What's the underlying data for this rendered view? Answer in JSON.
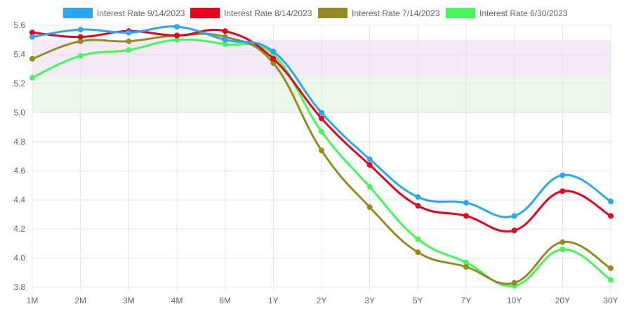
{
  "chart_data": {
    "type": "line",
    "categories": [
      "1M",
      "2M",
      "3M",
      "4M",
      "6M",
      "1Y",
      "2Y",
      "3Y",
      "5Y",
      "7Y",
      "10Y",
      "20Y",
      "30Y"
    ],
    "ylim": [
      3.8,
      5.6
    ],
    "yticks": [
      "5.6",
      "5.4",
      "5.2",
      "5.0",
      "4.8",
      "4.6",
      "4.4",
      "4.2",
      "4.0",
      "3.8"
    ],
    "grid": true,
    "legend_position": "top",
    "bands": [
      {
        "from": 5.25,
        "to": 5.5,
        "color": "#f3eaf5"
      },
      {
        "from": 5.0,
        "to": 5.25,
        "color": "#ecf8ea"
      }
    ],
    "series": [
      {
        "name": "Interest Rate 9/14/2023",
        "color": "#2aa6f5",
        "values": [
          5.52,
          5.57,
          5.55,
          5.59,
          5.5,
          5.42,
          5.0,
          4.68,
          4.42,
          4.38,
          4.29,
          4.57,
          4.39
        ]
      },
      {
        "name": "Interest Rate 8/14/2023",
        "color": "#e8001c",
        "values": [
          5.55,
          5.52,
          5.56,
          5.53,
          5.56,
          5.37,
          4.96,
          4.64,
          4.36,
          4.29,
          4.19,
          4.46,
          4.29
        ]
      },
      {
        "name": "Interest Rate 7/14/2023",
        "color": "#948c22",
        "values": [
          5.37,
          5.49,
          5.49,
          5.53,
          5.52,
          5.34,
          4.74,
          4.35,
          4.04,
          3.94,
          3.83,
          4.11,
          3.93
        ]
      },
      {
        "name": "Interest Rate 6/30/2023",
        "color": "#45f55a",
        "values": [
          5.24,
          5.39,
          5.43,
          5.5,
          5.47,
          5.4,
          4.87,
          4.49,
          4.13,
          3.97,
          3.81,
          4.06,
          3.85
        ]
      }
    ]
  }
}
